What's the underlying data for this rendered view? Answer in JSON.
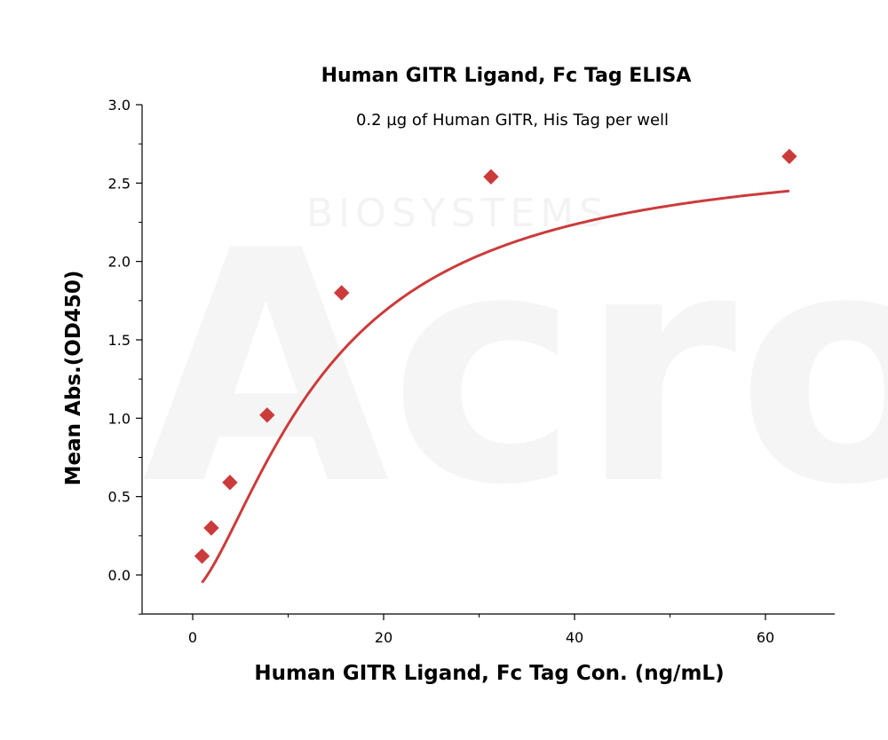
{
  "watermark": {
    "text": "Acro",
    "subtext": "BIOSYSTEMS",
    "color": "#f3f3f3"
  },
  "chart_data": {
    "type": "scatter",
    "title": "Human GITR Ligand, Fc Tag ELISA",
    "subtitle": "0.2 µg of Human GITR, His Tag per well",
    "xlabel": "Human GITR Ligand, Fc Tag Con. (ng/mL)",
    "ylabel": "Mean Abs.(OD450)",
    "xlim": [
      -5,
      67
    ],
    "ylim": [
      -0.25,
      3.0
    ],
    "xticks": [
      0,
      20,
      40,
      60
    ],
    "xtick_labels": [
      "0",
      "20",
      "40",
      "60"
    ],
    "yticks": [
      0.0,
      0.5,
      1.0,
      1.5,
      2.0,
      2.5,
      3.0
    ],
    "ytick_labels": [
      "0.0",
      "0.5",
      "1.0",
      "1.5",
      "2.0",
      "2.5",
      "3.0"
    ],
    "grid": false,
    "color": "#cc3b3b",
    "series": [
      {
        "x": [
          0.98,
          1.95,
          3.9,
          7.8,
          15.6,
          31.25,
          62.5
        ],
        "y": [
          0.12,
          0.3,
          0.59,
          1.02,
          1.8,
          2.54,
          2.67
        ],
        "marker": "diamond",
        "fit": "four-parameter logistic",
        "fit_params": {
          "bottom": -0.1,
          "top": 2.72,
          "ec50": 14.0,
          "hill": 1.5
        }
      }
    ]
  }
}
